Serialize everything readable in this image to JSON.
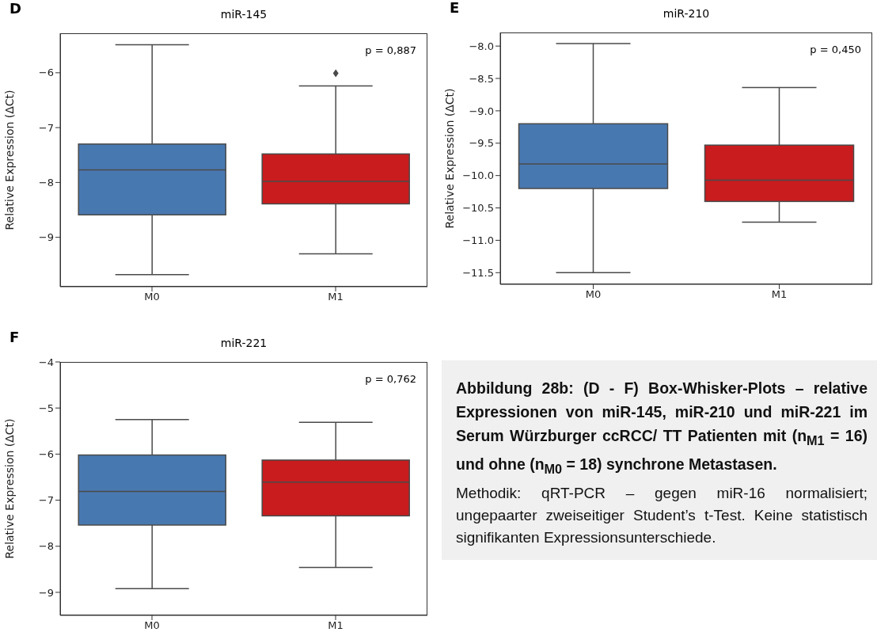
{
  "chart_data": [
    {
      "type": "box",
      "title": "miR-145",
      "ylabel": "Relative Expression (ΔCt)",
      "annotations": [
        "D",
        "p = 0,887"
      ],
      "categories": [
        "M0",
        "M1"
      ],
      "colors": [
        "#4878b0",
        "#c81c1e"
      ],
      "boxes": [
        {
          "low": -9.68,
          "q1": -8.59,
          "median": -7.77,
          "q3": -7.3,
          "high": -5.49
        },
        {
          "low": -9.3,
          "q1": -8.39,
          "median": -7.98,
          "q3": -7.48,
          "high": -6.24,
          "outliers": [
            -6.01
          ]
        }
      ],
      "ylim": [
        -9.9,
        -5.28
      ],
      "yticks": [
        {
          "value": -9,
          "label": "−9"
        },
        {
          "value": -8,
          "label": "−8"
        },
        {
          "value": -7,
          "label": "−7"
        },
        {
          "value": -6,
          "label": "−6"
        }
      ]
    },
    {
      "type": "box",
      "title": "miR-210",
      "ylabel": "Relative Expression (ΔCt)",
      "annotations": [
        "E",
        "p = 0,450"
      ],
      "categories": [
        "M0",
        "M1"
      ],
      "colors": [
        "#4878b0",
        "#c81c1e"
      ],
      "boxes": [
        {
          "low": -11.5,
          "q1": -10.2,
          "median": -9.82,
          "q3": -9.2,
          "high": -7.96
        },
        {
          "low": -10.72,
          "q1": -10.4,
          "median": -10.07,
          "q3": -9.53,
          "high": -8.64
        }
      ],
      "ylim": [
        -11.68,
        -7.79
      ],
      "yticks": [
        {
          "value": -11.5,
          "label": "−11.5"
        },
        {
          "value": -11,
          "label": "−11.0"
        },
        {
          "value": -10.5,
          "label": "−10.5"
        },
        {
          "value": -10,
          "label": "−10.0"
        },
        {
          "value": -9.5,
          "label": "−9.5"
        },
        {
          "value": -9,
          "label": "−9.0"
        },
        {
          "value": -8.5,
          "label": "−8.5"
        },
        {
          "value": -8,
          "label": "−8.0"
        }
      ]
    },
    {
      "type": "box",
      "title": "miR-221",
      "ylabel": "Relative Expression (ΔCt)",
      "annotations": [
        "F",
        "p = 0,762"
      ],
      "categories": [
        "M0",
        "M1"
      ],
      "colors": [
        "#4878b0",
        "#c81c1e"
      ],
      "boxes": [
        {
          "low": -8.92,
          "q1": -7.54,
          "median": -6.81,
          "q3": -6.02,
          "high": -5.25
        },
        {
          "low": -8.46,
          "q1": -7.34,
          "median": -6.61,
          "q3": -6.13,
          "high": -5.31
        }
      ],
      "ylim": [
        -9.5,
        -4
      ],
      "yticks": [
        {
          "value": -9,
          "label": "−9"
        },
        {
          "value": -8,
          "label": "−8"
        },
        {
          "value": -7,
          "label": "−7"
        },
        {
          "value": -6,
          "label": "−6"
        },
        {
          "value": -5,
          "label": "−5"
        },
        {
          "value": -4,
          "label": "−4"
        }
      ]
    },
    {
      "type": "other",
      "title": "Abbildung 28b: (D - F) Box-Whisker-Plots – relative Expressionen von miR-145, miR-210 und miR-221 im Serum Würzburger ccRCC/ TT Patienten mit (n$_{M1}$ = 16) und ohne (n$_{M0}$ = 18) synchrone Metastasen.",
      "annotations": [
        "Methodik: qRT-PCR – gegen miR-16 normalisiert; ungepaarter zweiseitiger Student’s t-Test. Keine statistisch signifikanten Expressionsunterschiede."
      ]
    }
  ]
}
